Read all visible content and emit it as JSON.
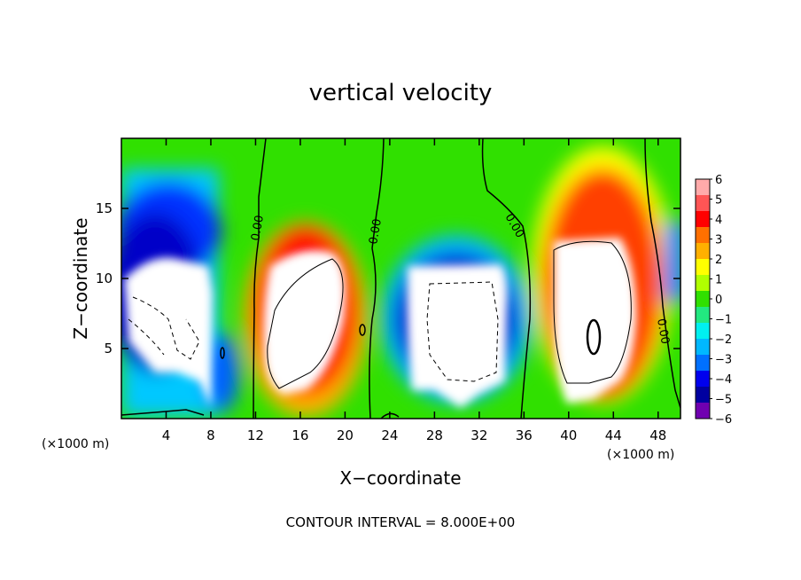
{
  "chart_data": {
    "type": "heatmap",
    "title": "vertical velocity",
    "xlabel": "X−coordinate",
    "ylabel": "Z−coordinate",
    "x_units": "(×1000 m)",
    "xlim": [
      0,
      50
    ],
    "ylim": [
      0,
      20
    ],
    "x_ticks": [
      4,
      8,
      12,
      16,
      20,
      24,
      28,
      32,
      36,
      40,
      44,
      48
    ],
    "y_ticks": [
      5,
      10,
      15
    ],
    "colorbar": {
      "min": -6,
      "max": 6,
      "labels": [
        "6",
        "5",
        "4",
        "3",
        "2",
        "1",
        "0",
        "−1",
        "−2",
        "−3",
        "−4",
        "−5",
        "−6"
      ],
      "colors": [
        "#ffaaaa",
        "#ff5555",
        "#ff0000",
        "#ff7000",
        "#ffb000",
        "#ffff00",
        "#b0ff00",
        "#30e000",
        "#22e880",
        "#00f0f0",
        "#00b8ff",
        "#0070ff",
        "#0000ee",
        "#0000a0",
        "#7000b0"
      ]
    },
    "contour_labels": [
      "0.00",
      "0.00",
      "0.00",
      "0.00"
    ],
    "cells": [
      {
        "name": "updraft",
        "x_center": 17,
        "z_center": 7.5,
        "x_halfwidth": 4.2,
        "z_halfwidth": 5.5
      },
      {
        "name": "updraft",
        "x_center": 41.5,
        "z_center": 9,
        "x_halfwidth": 4.5,
        "z_halfwidth": 7.5
      },
      {
        "name": "downdraft",
        "x_center": 30,
        "z_center": 7,
        "x_halfwidth": 6,
        "z_halfwidth": 5
      },
      {
        "name": "downdraft",
        "x_center": 6,
        "z_center": 9,
        "x_halfwidth": 6,
        "z_halfwidth": 7
      }
    ],
    "footer": "CONTOUR INTERVAL = 8.000E+00"
  }
}
